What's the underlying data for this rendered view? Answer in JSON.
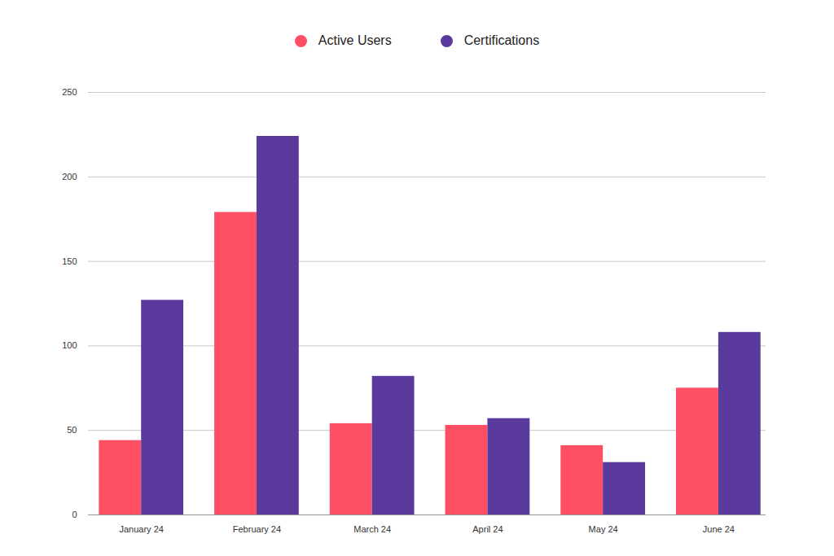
{
  "chart_data": {
    "type": "bar",
    "categories": [
      "January 24",
      "February 24",
      "March 24",
      "April 24",
      "May 24",
      "June 24"
    ],
    "series": [
      {
        "name": "Active Users",
        "color": "#ff4f64",
        "values": [
          44,
          179,
          54,
          53,
          41,
          75
        ]
      },
      {
        "name": "Certifications",
        "color": "#5b3a9e",
        "values": [
          127,
          224,
          82,
          57,
          31,
          108
        ]
      }
    ],
    "ylim": [
      0,
      250
    ],
    "yticks": [
      0,
      50,
      100,
      150,
      200,
      250
    ],
    "grid": true,
    "legend": "top"
  }
}
